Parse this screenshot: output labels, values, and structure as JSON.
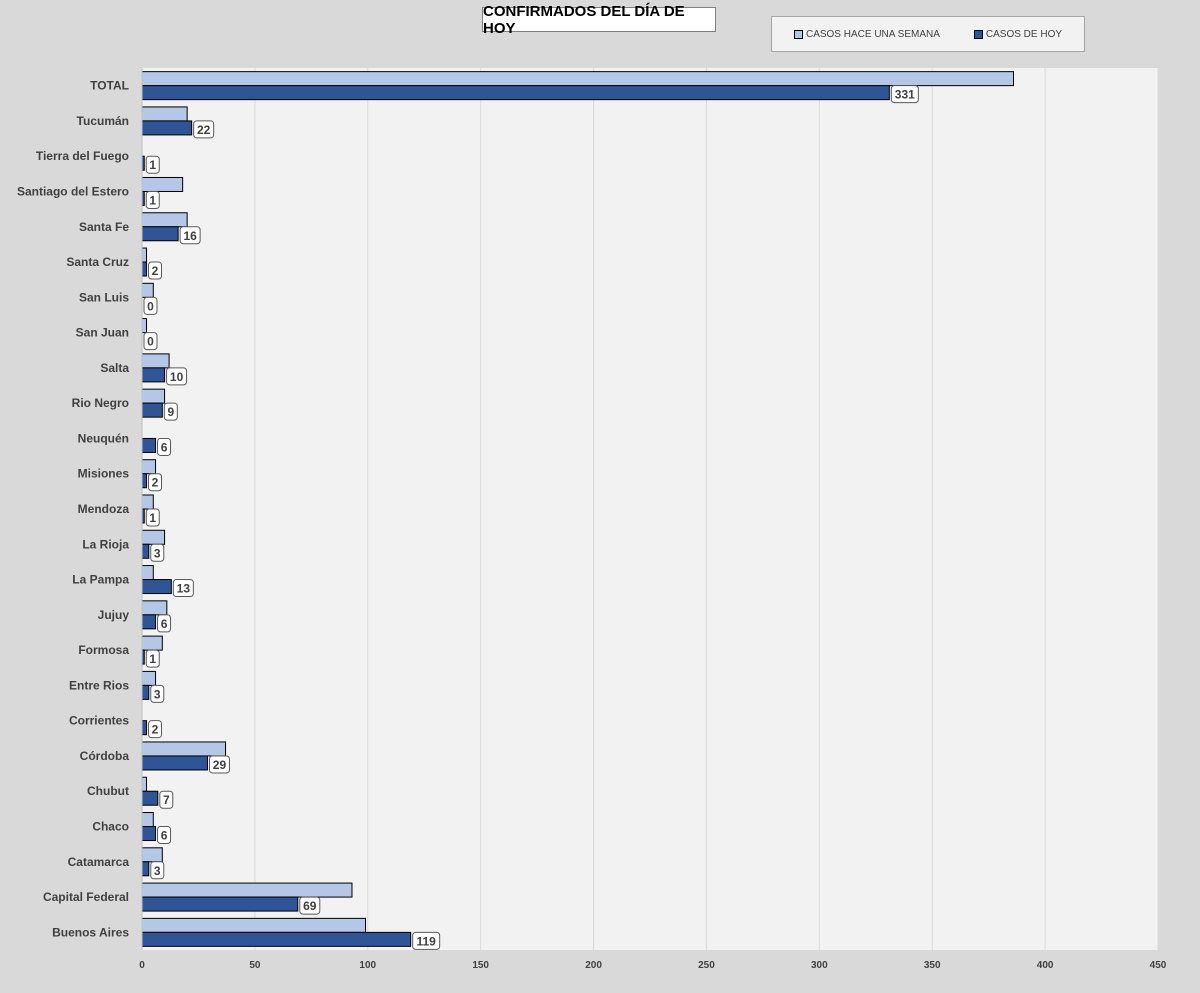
{
  "chart_data": {
    "type": "bar",
    "orientation": "horizontal",
    "title": "CONFIRMADOS DEL DÍA DE HOY",
    "categories": [
      "TOTAL",
      "Tucumán",
      "Tierra del Fuego",
      "Santiago del Estero",
      "Santa Fe",
      "Santa Cruz",
      "San Luis",
      "San Juan",
      "Salta",
      "Rio Negro",
      "Neuquén",
      "Misiones",
      "Mendoza",
      "La Rioja",
      "La Pampa",
      "Jujuy",
      "Formosa",
      "Entre Rios",
      "Corrientes",
      "Córdoba",
      "Chubut",
      "Chaco",
      "Catamarca",
      "Capital Federal",
      "Buenos Aires"
    ],
    "series": [
      {
        "name": "CASOS HACE UNA SEMANA",
        "color": "#b4c7e7",
        "values": [
          386,
          20,
          0,
          18,
          20,
          2,
          5,
          2,
          12,
          10,
          0,
          6,
          5,
          10,
          5,
          11,
          9,
          6,
          0,
          37,
          2,
          5,
          9,
          93,
          99
        ]
      },
      {
        "name": "CASOS DE HOY",
        "color": "#2f5597",
        "values": [
          331,
          22,
          1,
          1,
          16,
          2,
          0,
          0,
          10,
          9,
          6,
          2,
          1,
          3,
          13,
          6,
          1,
          3,
          2,
          29,
          7,
          6,
          3,
          69,
          119
        ]
      }
    ],
    "data_labels_series": "CASOS DE HOY",
    "xlim": [
      0,
      450
    ],
    "xticks": [
      0,
      50,
      100,
      150,
      200,
      250,
      300,
      350,
      400,
      450
    ],
    "grid": true,
    "legend_position": "top-right"
  }
}
